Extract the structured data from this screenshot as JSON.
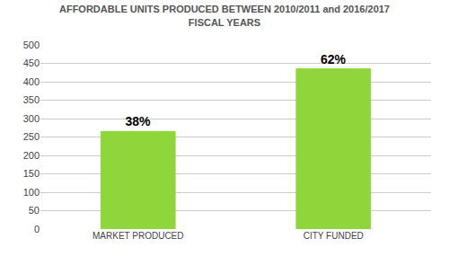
{
  "chart_data": {
    "type": "bar",
    "title": "AFFORDABLE UNITS PRODUCED BETWEEN 2010/2011 and 2016/2017\nFISCAL YEARS",
    "categories": [
      "MARKET PRODUCED",
      "CITY FUNDED"
    ],
    "values": [
      265,
      435
    ],
    "value_labels": [
      "38%",
      "62%"
    ],
    "data_labels": true,
    "color": "#8ED63A",
    "ylim": [
      0,
      500
    ],
    "yticks": [
      0,
      50,
      100,
      150,
      200,
      250,
      300,
      350,
      400,
      450,
      500
    ],
    "grid": true
  }
}
